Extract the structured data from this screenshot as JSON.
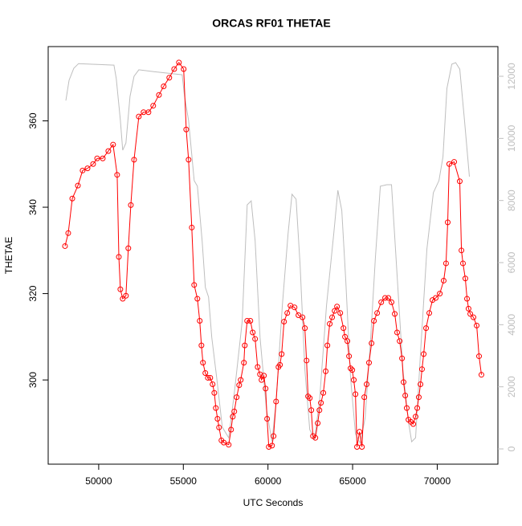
{
  "chart_data": {
    "type": "line",
    "title": "ORCAS RF01 THETAE",
    "xlabel": "UTC Seconds",
    "ylabel": "THETAE",
    "xlim": [
      47016,
      73584
    ],
    "xticks": [
      50000,
      55000,
      60000,
      65000,
      70000
    ],
    "ylim": [
      280.5,
      377.2
    ],
    "yticks": [
      300,
      320,
      340,
      360
    ],
    "y2lim": [
      -491,
      12957
    ],
    "y2ticks": [
      0,
      2000,
      4000,
      6000,
      8000,
      10000,
      12000
    ],
    "series": [
      {
        "color": "#ff0000",
        "marker": "circle",
        "x": [
          48010,
          48200,
          48440,
          48770,
          49050,
          49340,
          49670,
          49910,
          50240,
          50570,
          50850,
          51090,
          51190,
          51280,
          51420,
          51610,
          51750,
          51900,
          52090,
          52370,
          52650,
          52940,
          53220,
          53560,
          53840,
          54170,
          54460,
          54740,
          55020,
          55170,
          55310,
          55500,
          55640,
          55830,
          55970,
          56070,
          56160,
          56300,
          56450,
          56590,
          56730,
          56830,
          56920,
          57020,
          57110,
          57250,
          57390,
          57680,
          57820,
          57920,
          58010,
          58150,
          58300,
          58390,
          58580,
          58630,
          58770,
          58960,
          59100,
          59240,
          59390,
          59530,
          59620,
          59760,
          59860,
          59950,
          60050,
          60240,
          60330,
          60480,
          60620,
          60710,
          60810,
          60950,
          61140,
          61330,
          61570,
          61800,
          62040,
          62180,
          62280,
          62370,
          62470,
          62560,
          62660,
          62800,
          62940,
          63040,
          63130,
          63270,
          63410,
          63510,
          63650,
          63790,
          63940,
          64080,
          64270,
          64460,
          64550,
          64690,
          64790,
          64880,
          64980,
          65070,
          65170,
          65260,
          65410,
          65550,
          65690,
          65830,
          65970,
          66120,
          66260,
          66450,
          66690,
          66920,
          67110,
          67300,
          67490,
          67630,
          67780,
          67920,
          68010,
          68110,
          68200,
          68300,
          68440,
          68580,
          68720,
          68820,
          68910,
          69010,
          69100,
          69200,
          69340,
          69530,
          69720,
          69910,
          70150,
          70380,
          70520,
          70620,
          70710,
          71000,
          71330,
          71430,
          71520,
          71660,
          71760,
          71850,
          71950,
          72140,
          72330,
          72470,
          72610
        ],
        "values": [
          331,
          334,
          342,
          345,
          348.5,
          349,
          350,
          351.3,
          351.3,
          353,
          354.5,
          347.5,
          328.5,
          321,
          318.8,
          319.5,
          330.5,
          340.5,
          351,
          361,
          362,
          362,
          363.5,
          366,
          368,
          370,
          372,
          373.5,
          372,
          358,
          351,
          335.3,
          322,
          318.8,
          313.7,
          308,
          304,
          301.6,
          300.5,
          300.5,
          299,
          297,
          293.5,
          291,
          289,
          286,
          285.5,
          285,
          288.5,
          291.5,
          292.7,
          296,
          298.8,
          300,
          304,
          308,
          313.7,
          313.7,
          311,
          309.5,
          303,
          301.3,
          300,
          301,
          298,
          291,
          284.5,
          284.8,
          287,
          295,
          303,
          303.5,
          306,
          313.5,
          315.5,
          317.2,
          316.8,
          315,
          314.5,
          312,
          304.5,
          296.2,
          295.8,
          293,
          287,
          286.6,
          290,
          293,
          294.7,
          297,
          302,
          308,
          313,
          314.5,
          316,
          317,
          315.5,
          312,
          310,
          309,
          305.5,
          302.7,
          302.3,
          300,
          296.7,
          284.5,
          288,
          284.5,
          296,
          299,
          304,
          308.5,
          313.7,
          315.5,
          318,
          319,
          319,
          318,
          315.3,
          311,
          309,
          305,
          299.5,
          296.4,
          293.5,
          290.8,
          290.3,
          289.8,
          291.5,
          293.5,
          296,
          299,
          302.5,
          306,
          312,
          315.5,
          318.5,
          319,
          320,
          323,
          327,
          336.5,
          350,
          350.5,
          346,
          330,
          327,
          323.5,
          318.8,
          316.5,
          315.3,
          314.5,
          312.6,
          305.5,
          301.2
        ]
      },
      {
        "color": "#bebebe",
        "axis": "y2",
        "x": [
          48060,
          48250,
          48530,
          48810,
          49480,
          50900,
          51040,
          51280,
          51420,
          51610,
          51850,
          52090,
          52370,
          53270,
          54930,
          55070,
          55310,
          55640,
          55830,
          56110,
          56300,
          56490,
          56680,
          56970,
          57300,
          57680,
          58010,
          58480,
          58770,
          59010,
          59240,
          59530,
          59910,
          60240,
          60480,
          60850,
          61190,
          61420,
          61660,
          61900,
          62180,
          62470,
          62750,
          63040,
          63460,
          63890,
          64130,
          64360,
          64600,
          64880,
          65170,
          65450,
          65740,
          66070,
          66350,
          66640,
          67020,
          67300,
          67590,
          67970,
          68300,
          68490,
          68720,
          69010,
          69390,
          69770,
          70100,
          70340,
          70570,
          70860,
          71090,
          71330,
          71610,
          71900
        ],
        "values": [
          11220,
          11870,
          12260,
          12410,
          12390,
          12360,
          11920,
          10580,
          9620,
          9850,
          11350,
          12000,
          12210,
          12150,
          12050,
          11350,
          10580,
          8640,
          8460,
          6700,
          5200,
          4890,
          3590,
          2300,
          700,
          360,
          1780,
          4110,
          7860,
          7990,
          6700,
          3590,
          1270,
          230,
          1530,
          4630,
          6960,
          8200,
          8040,
          5920,
          2560,
          620,
          310,
          1530,
          4630,
          6960,
          8330,
          7680,
          5400,
          2300,
          490,
          180,
          1010,
          3590,
          6180,
          8460,
          8510,
          8510,
          5920,
          2560,
          880,
          230,
          360,
          3080,
          6440,
          8250,
          8640,
          9410,
          11610,
          12390,
          12440,
          12230,
          10580,
          8770
        ]
      }
    ]
  }
}
